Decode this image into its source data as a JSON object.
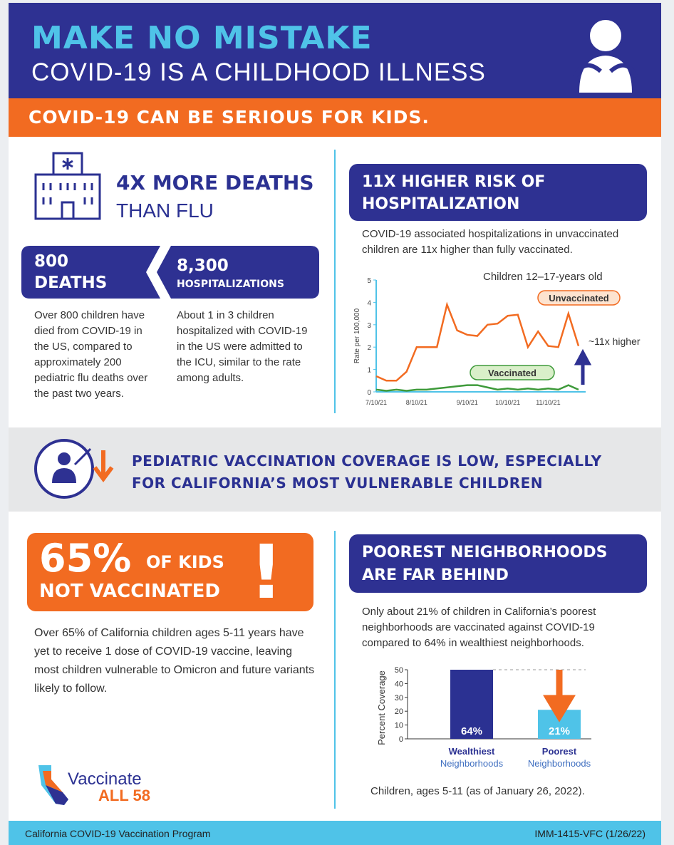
{
  "header": {
    "title": "MAKE NO MISTAKE",
    "subtitle": "COVID-19 IS A CHILDHOOD ILLNESS"
  },
  "banner": "COVID-19 CAN BE SERIOUS FOR KIDS.",
  "deaths": {
    "headline": "4X MORE DEATHS",
    "subhead": "THAN FLU",
    "stats": [
      {
        "number": "800",
        "label": "DEATHS",
        "text": "Over 800 children have died from COVID-19 in the US, compared to approximately 200 pediatric flu deaths over the past two years."
      },
      {
        "number": "8,300",
        "label": "HOSPITALIZATIONS",
        "text": "About 1 in 3 children hospitalized with COVID-19 in the US were admitted to the ICU, similar to the rate among adults."
      }
    ]
  },
  "hospitalization": {
    "title": "11X HIGHER RISK OF HOSPITALIZATION",
    "text": "COVID-19 associated hospitalizations in unvaccinated children are 11x higher than fully vaccinated.",
    "chart": {
      "type": "line",
      "title": "Children 12–17-years old",
      "ylabel": "Rate per 100,000",
      "x": [
        "7/10/21",
        null,
        null,
        null,
        "8/10/21",
        null,
        null,
        null,
        null,
        "9/10/21",
        null,
        null,
        null,
        "10/10/21",
        null,
        null,
        null,
        "11/10/21",
        null,
        null,
        null
      ],
      "series": [
        {
          "name": "Unvaccinated",
          "color": "#f26b21",
          "values": [
            0.7,
            0.5,
            0.5,
            0.9,
            2.0,
            2.0,
            2.0,
            3.9,
            2.75,
            2.55,
            2.5,
            3.0,
            3.05,
            3.4,
            3.45,
            2.0,
            2.7,
            2.05,
            2.0,
            3.5,
            2.05
          ]
        },
        {
          "name": "Vaccinated",
          "color": "#3e9a3a",
          "values": [
            0.1,
            0.05,
            0.1,
            0.05,
            0.1,
            0.1,
            0.15,
            0.2,
            0.25,
            0.3,
            0.3,
            0.2,
            0.1,
            0.15,
            0.1,
            0.15,
            0.1,
            0.15,
            0.1,
            0.3,
            0.1
          ]
        }
      ],
      "ylim": [
        0,
        5
      ],
      "yticks": [
        0,
        1,
        2,
        3,
        4,
        5
      ],
      "annotation": "~11x higher"
    }
  },
  "coverage": {
    "title": "PEDIATRIC VACCINATION COVERAGE IS LOW, ESPECIALLY FOR CALIFORNIA’S MOST VULNERABLE CHILDREN"
  },
  "unvaccinated": {
    "percent": "65%",
    "of": "OF KIDS",
    "label": "NOT VACCINATED",
    "mark": "!",
    "text": "Over 65% of California children ages 5-11 years have yet to receive 1 dose of COVID-19 vaccine, leaving most children vulnerable to Omicron and future variants likely to follow."
  },
  "neighborhoods": {
    "title": "POOREST NEIGHBORHOODS ARE FAR BEHIND",
    "text": "Only about 21% of children in California’s poorest neighborhoods are vaccinated against COVID-19 compared to 64% in wealthiest neighborhoods.",
    "chart": {
      "type": "bar",
      "ylabel": "Percent Coverage",
      "categories": [
        {
          "name": "Wealthiest",
          "sub": "Neighborhoods"
        },
        {
          "name": "Poorest",
          "sub": "Neighborhoods"
        }
      ],
      "values": [
        64,
        21
      ],
      "value_labels": [
        "64%",
        "21%"
      ],
      "colors": [
        "#2b3192",
        "#4fc3e8"
      ],
      "ylim": [
        0,
        50
      ],
      "yticks": [
        0,
        10,
        20,
        30,
        40,
        50
      ]
    },
    "caption": "Children, ages 5-11 (as of January 26, 2022)."
  },
  "logo": {
    "line1": "Vaccinate",
    "line2": "ALL 58"
  },
  "footer": {
    "left": "California COVID-19 Vaccination Program",
    "right": "IMM-1415-VFC (1/26/22)"
  }
}
